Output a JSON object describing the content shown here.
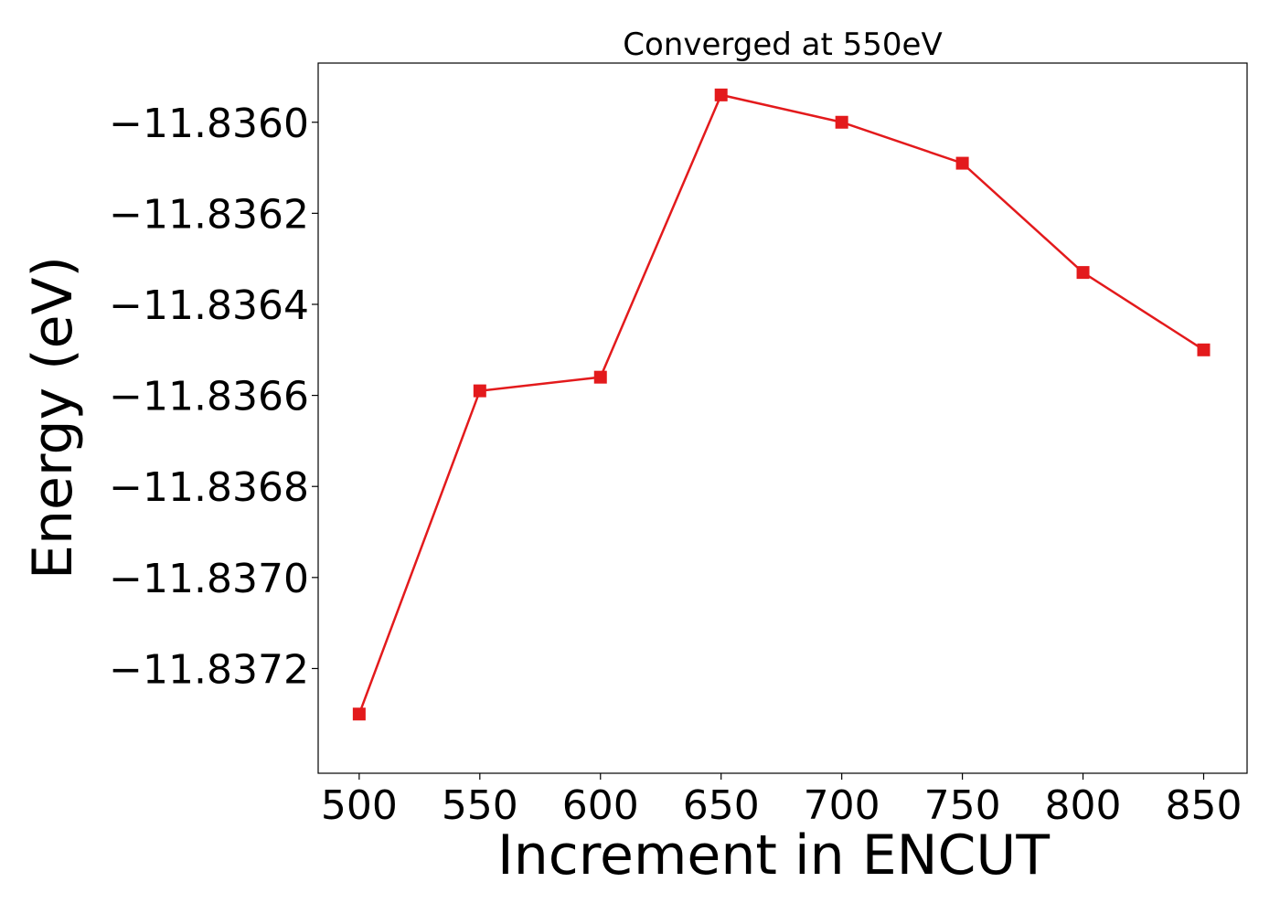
{
  "chart_data": {
    "type": "line",
    "title": "Converged at 550eV",
    "xlabel": "Increment in ENCUT",
    "ylabel": "Energy (eV)",
    "x": [
      500,
      550,
      600,
      650,
      700,
      750,
      800,
      850
    ],
    "series": [
      {
        "values": [
          -11.8373,
          -11.83659,
          -11.83656,
          -11.83594,
          -11.836,
          -11.83609,
          -11.83633,
          -11.8365
        ],
        "color": "#e31a1c",
        "marker": "square"
      }
    ],
    "xlim": [
      483,
      868
    ],
    "ylim": [
      -11.83743,
      -11.83587
    ],
    "xticks": [
      500,
      550,
      600,
      650,
      700,
      750,
      800,
      850
    ],
    "xtick_labels": [
      "500",
      "550",
      "600",
      "650",
      "700",
      "750",
      "800",
      "850"
    ],
    "yticks": [
      -11.836,
      -11.8362,
      -11.8364,
      -11.8366,
      -11.8368,
      -11.837,
      -11.8372
    ],
    "ytick_labels": [
      "−11.8360",
      "−11.8362",
      "−11.8364",
      "−11.8366",
      "−11.8368",
      "−11.8370",
      "−11.8372"
    ],
    "grid": false,
    "legend": "none"
  }
}
